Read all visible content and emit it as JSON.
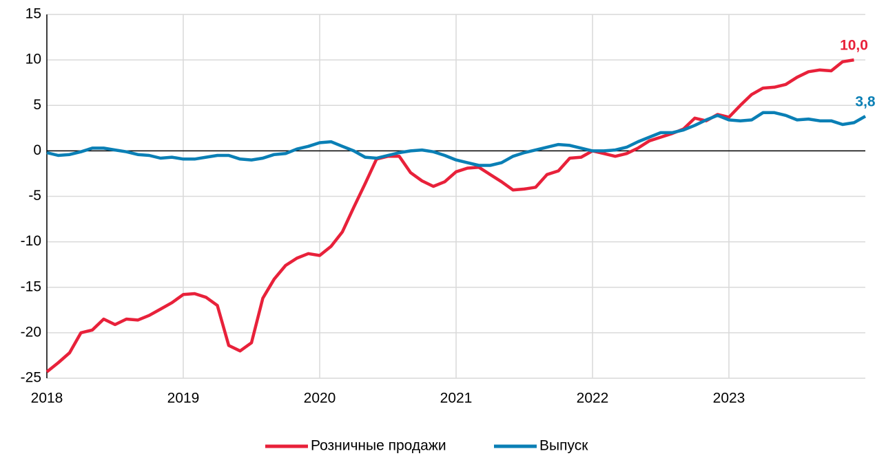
{
  "chart_data": {
    "type": "line",
    "x": [
      2018,
      2018.0833,
      2018.1667,
      2018.25,
      2018.3333,
      2018.4167,
      2018.5,
      2018.5833,
      2018.6667,
      2018.75,
      2018.8333,
      2018.9167,
      2019,
      2019.0833,
      2019.1667,
      2019.25,
      2019.3333,
      2019.4167,
      2019.5,
      2019.5833,
      2019.6667,
      2019.75,
      2019.8333,
      2019.9167,
      2020,
      2020.0833,
      2020.1667,
      2020.25,
      2020.3333,
      2020.4167,
      2020.5,
      2020.5833,
      2020.6667,
      2020.75,
      2020.8333,
      2020.9167,
      2021,
      2021.0833,
      2021.1667,
      2021.25,
      2021.3333,
      2021.4167,
      2021.5,
      2021.5833,
      2021.6667,
      2021.75,
      2021.8333,
      2021.9167,
      2022,
      2022.0833,
      2022.1667,
      2022.25,
      2022.3333,
      2022.4167,
      2022.5,
      2022.5833,
      2022.6667,
      2022.75,
      2022.8333,
      2022.9167,
      2023,
      2023.0833,
      2023.1667,
      2023.25,
      2023.3333,
      2023.4167,
      2023.5,
      2023.5833,
      2023.6667,
      2023.75,
      2023.8333,
      2023.9167,
      2024
    ],
    "series": [
      {
        "name": "Розничные продажи",
        "color": "#e8213a",
        "values": [
          -24.3,
          -23.3,
          -22.2,
          -20.0,
          -19.7,
          -18.5,
          -19.1,
          -18.5,
          -18.6,
          -18.1,
          -17.4,
          -16.7,
          -15.8,
          -15.7,
          -16.1,
          -17.0,
          -21.4,
          -22.0,
          -21.1,
          -16.2,
          -14.1,
          -12.6,
          -11.8,
          -11.3,
          -11.5,
          -10.5,
          -8.9,
          -6.2,
          -3.6,
          -0.9,
          -0.6,
          -0.6,
          -2.4,
          -3.3,
          -3.9,
          -3.4,
          -2.3,
          -1.9,
          -1.8,
          -2.6,
          -3.4,
          -4.3,
          -4.2,
          -4.0,
          -2.6,
          -2.2,
          -0.8,
          -0.7,
          0.0,
          -0.3,
          -0.6,
          -0.3,
          0.3,
          1.1,
          1.5,
          1.9,
          2.4,
          3.6,
          3.3,
          4.0,
          3.7,
          5.0,
          6.2,
          6.9,
          7.0,
          7.3,
          8.1,
          8.7,
          8.9,
          8.8,
          9.8,
          10.0,
          null
        ],
        "value_labels": [
          null,
          null,
          null,
          null,
          null,
          null,
          null,
          null,
          null,
          null,
          null,
          null,
          null,
          null,
          null,
          null,
          null,
          null,
          null,
          null,
          null,
          null,
          null,
          null,
          null,
          null,
          null,
          null,
          null,
          null,
          null,
          null,
          null,
          null,
          null,
          null,
          null,
          null,
          null,
          null,
          null,
          null,
          null,
          null,
          null,
          null,
          null,
          null,
          null,
          null,
          null,
          null,
          null,
          null,
          null,
          null,
          null,
          null,
          null,
          null,
          null,
          null,
          null,
          null,
          null,
          null,
          null,
          null,
          null,
          null,
          null,
          "10,0",
          null
        ]
      },
      {
        "name": "Выпуск",
        "color": "#0a7fb5",
        "values": [
          -0.2,
          -0.5,
          -0.4,
          -0.1,
          0.3,
          0.3,
          0.1,
          -0.1,
          -0.4,
          -0.5,
          -0.8,
          -0.7,
          -0.9,
          -0.9,
          -0.7,
          -0.5,
          -0.5,
          -0.9,
          -1.0,
          -0.8,
          -0.4,
          -0.3,
          0.2,
          0.5,
          0.9,
          1.0,
          0.5,
          0.0,
          -0.7,
          -0.8,
          -0.5,
          -0.2,
          0.0,
          0.1,
          -0.1,
          -0.5,
          -1.0,
          -1.3,
          -1.6,
          -1.6,
          -1.3,
          -0.6,
          -0.2,
          0.1,
          0.4,
          0.7,
          0.6,
          0.3,
          0.0,
          0.0,
          0.1,
          0.4,
          1.0,
          1.5,
          2.0,
          2.0,
          2.3,
          2.8,
          3.4,
          3.9,
          3.4,
          3.3,
          3.4,
          4.2,
          4.2,
          3.9,
          3.4,
          3.5,
          3.3,
          3.3,
          2.9,
          3.1,
          3.8
        ],
        "value_labels": [
          null,
          null,
          null,
          null,
          null,
          null,
          null,
          null,
          null,
          null,
          null,
          null,
          null,
          null,
          null,
          null,
          null,
          null,
          null,
          null,
          null,
          null,
          null,
          null,
          null,
          null,
          null,
          null,
          null,
          null,
          null,
          null,
          null,
          null,
          null,
          null,
          null,
          null,
          null,
          null,
          null,
          null,
          null,
          null,
          null,
          null,
          null,
          null,
          null,
          null,
          null,
          null,
          null,
          null,
          null,
          null,
          null,
          null,
          null,
          null,
          null,
          null,
          null,
          null,
          null,
          null,
          null,
          null,
          null,
          null,
          null,
          null,
          "3,8"
        ]
      }
    ],
    "xlim": [
      2018,
      2024
    ],
    "xticks": [
      2018,
      2019,
      2020,
      2021,
      2022,
      2023
    ],
    "ylim": [
      -25,
      15
    ],
    "yticks": [
      -25,
      -20,
      -15,
      -10,
      -5,
      0,
      5,
      10,
      15
    ],
    "grid": true,
    "legend": "bottom"
  }
}
